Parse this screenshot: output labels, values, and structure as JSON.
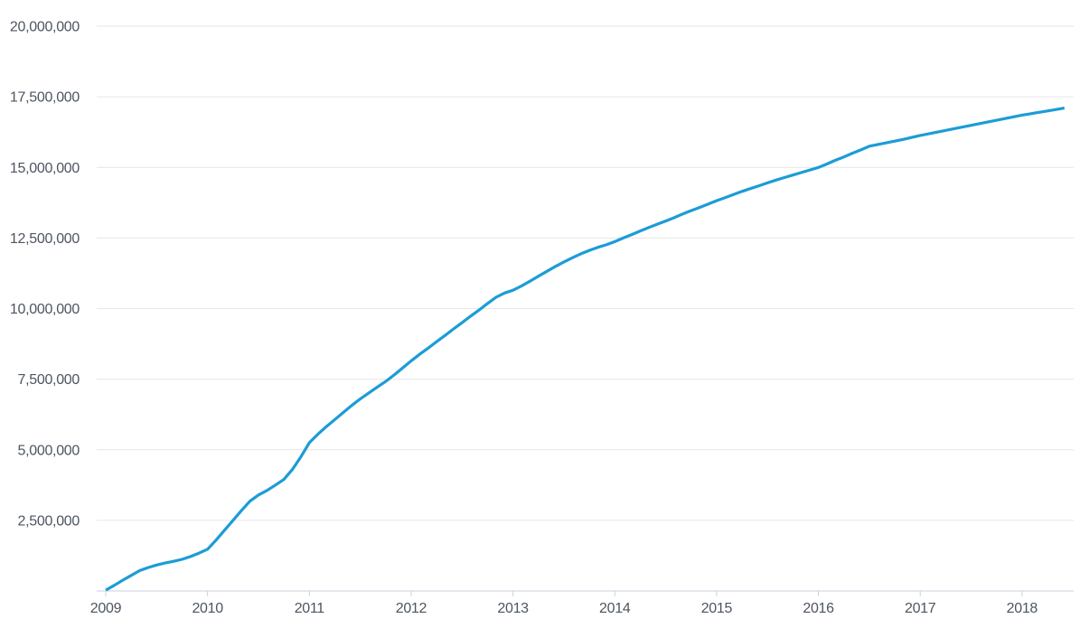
{
  "chart_data": {
    "type": "line",
    "title": "",
    "xlabel": "",
    "ylabel": "",
    "grid": "horizontal",
    "legend": false,
    "ylim": [
      0,
      20000000
    ],
    "xlim_years": [
      2008.91,
      2018.51
    ],
    "x_ticks": [
      {
        "value": 2009,
        "label": "2009"
      },
      {
        "value": 2010,
        "label": "2010"
      },
      {
        "value": 2011,
        "label": "2011"
      },
      {
        "value": 2012,
        "label": "2012"
      },
      {
        "value": 2013,
        "label": "2013"
      },
      {
        "value": 2014,
        "label": "2014"
      },
      {
        "value": 2015,
        "label": "2015"
      },
      {
        "value": 2016,
        "label": "2016"
      },
      {
        "value": 2017,
        "label": "2017"
      },
      {
        "value": 2018,
        "label": "2018"
      }
    ],
    "y_ticks": [
      {
        "value": 2500000,
        "label": "2,500,000"
      },
      {
        "value": 5000000,
        "label": "5,000,000"
      },
      {
        "value": 7500000,
        "label": "7,500,000"
      },
      {
        "value": 10000000,
        "label": "10,000,000"
      },
      {
        "value": 12500000,
        "label": "12,500,000"
      },
      {
        "value": 15000000,
        "label": "15,000,000"
      },
      {
        "value": 17500000,
        "label": "17,500,000"
      },
      {
        "value": 20000000,
        "label": "20,000,000"
      }
    ],
    "series": [
      {
        "name": "",
        "color": "#1c9cd6",
        "x_start_year": 2009,
        "x_step": "month",
        "values": [
          30000,
          200000,
          380000,
          550000,
          720000,
          830000,
          920000,
          990000,
          1050000,
          1120000,
          1220000,
          1340000,
          1480000,
          1800000,
          2150000,
          2500000,
          2850000,
          3180000,
          3400000,
          3560000,
          3750000,
          3950000,
          4300000,
          4750000,
          5250000,
          5550000,
          5820000,
          6070000,
          6320000,
          6570000,
          6800000,
          7010000,
          7220000,
          7420000,
          7650000,
          7900000,
          8150000,
          8380000,
          8600000,
          8830000,
          9050000,
          9280000,
          9500000,
          9730000,
          9950000,
          10180000,
          10400000,
          10550000,
          10650000,
          10800000,
          10970000,
          11150000,
          11320000,
          11490000,
          11650000,
          11800000,
          11940000,
          12060000,
          12170000,
          12260000,
          12370000,
          12500000,
          12620000,
          12750000,
          12870000,
          12990000,
          13100000,
          13220000,
          13350000,
          13470000,
          13580000,
          13700000,
          13820000,
          13930000,
          14040000,
          14150000,
          14250000,
          14350000,
          14450000,
          14550000,
          14640000,
          14730000,
          14820000,
          14910000,
          15000000,
          15120000,
          15250000,
          15370000,
          15500000,
          15620000,
          15750000,
          15810000,
          15870000,
          15930000,
          15990000,
          16060000,
          16130000,
          16190000,
          16250000,
          16310000,
          16370000,
          16430000,
          16490000,
          16550000,
          16610000,
          16670000,
          16730000,
          16790000,
          16850000,
          16900000,
          16950000,
          17000000,
          17050000,
          17100000
        ]
      }
    ]
  },
  "style": {
    "background": "#ffffff",
    "line_color": "#1c9cd6",
    "grid_color": "#e6e6e6",
    "axis_color": "#c9d1de",
    "label_color": "#4d5560"
  }
}
